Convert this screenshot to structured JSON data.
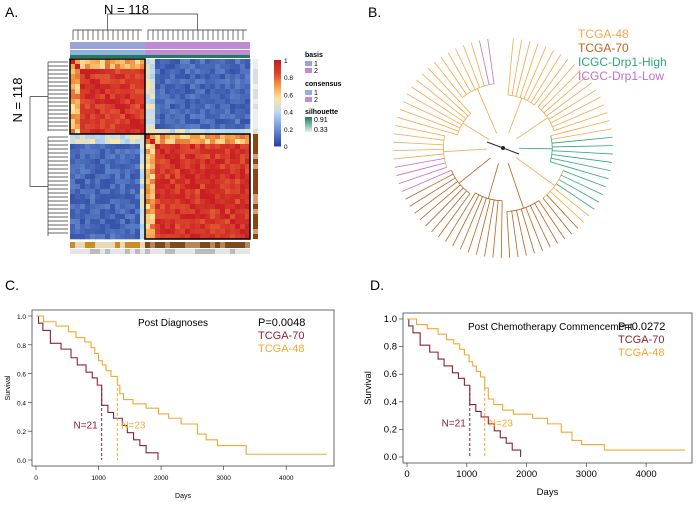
{
  "panels": {
    "a": {
      "label": "A.",
      "top_n": "N = 118",
      "side_n": "N = 118",
      "legend": {
        "basis_title": "basis",
        "consensus_title": "consensus",
        "silhouette_title": "silhouette",
        "class_1": "1",
        "class_2": "2",
        "sil_max": "0.91",
        "sil_min": "0.33",
        "scale_ticks": [
          "1",
          "0.8",
          "0.6",
          "0.4",
          "0.2",
          "0"
        ]
      },
      "colors": {
        "basis1": "#9aa3d6",
        "basis2": "#c08ad4",
        "cons1": "#8fb0e0",
        "cons2": "#c08ad4",
        "sil_dark": "#1e7a60",
        "sil_light": "#bfe6d6"
      }
    },
    "b": {
      "label": "B.",
      "legend": [
        {
          "name": "TCGA-48",
          "color": "#f2a94b"
        },
        {
          "name": "TCGA-70",
          "color": "#b3651f"
        },
        {
          "name": "ICGC-Drp1-High",
          "color": "#2ea77a"
        },
        {
          "name": "ICGC-Drp1-Low",
          "color": "#c36fc8"
        }
      ]
    },
    "c": {
      "label": "C."
    },
    "d": {
      "label": "D."
    }
  },
  "chart_data": [
    {
      "id": "heatmap",
      "type": "heatmap",
      "title": "",
      "clusters": 2,
      "n_samples": 118,
      "color_scale": {
        "min": 0,
        "max": 1,
        "ticks": [
          0,
          0.2,
          0.4,
          0.6,
          0.8,
          1
        ]
      }
    },
    {
      "id": "km-c",
      "type": "line",
      "title": "Post Diagnoses",
      "pvalue": "P=0.0048",
      "xlabel": "Days",
      "ylabel": "Survival",
      "xlim": [
        0,
        4700
      ],
      "ylim": [
        0,
        1
      ],
      "xticks": [
        0,
        1000,
        2000,
        3000,
        4000
      ],
      "yticks": [
        0.0,
        0.2,
        0.4,
        0.6,
        0.8,
        1.0
      ],
      "ytick_labels": [
        "0.0",
        "0.2",
        "0.4",
        "0.6",
        "0.8",
        "1.0"
      ],
      "series": [
        {
          "name": "TCGA-70",
          "color": "#8b2232",
          "median": 1050,
          "n_label": "N=21",
          "steps": [
            [
              0,
              1.0
            ],
            [
              40,
              0.95
            ],
            [
              110,
              0.9
            ],
            [
              230,
              0.81
            ],
            [
              400,
              0.77
            ],
            [
              560,
              0.71
            ],
            [
              660,
              0.66
            ],
            [
              800,
              0.61
            ],
            [
              900,
              0.57
            ],
            [
              980,
              0.52
            ],
            [
              1050,
              0.38
            ],
            [
              1150,
              0.33
            ],
            [
              1240,
              0.29
            ],
            [
              1380,
              0.24
            ],
            [
              1460,
              0.19
            ],
            [
              1560,
              0.14
            ],
            [
              1660,
              0.1
            ],
            [
              1760,
              0.05
            ],
            [
              1950,
              0.0
            ]
          ]
        },
        {
          "name": "TCGA-48",
          "color": "#f2a832",
          "median": 1300,
          "n_label": "N=23",
          "steps": [
            [
              0,
              1.0
            ],
            [
              120,
              0.96
            ],
            [
              320,
              0.93
            ],
            [
              520,
              0.89
            ],
            [
              640,
              0.85
            ],
            [
              780,
              0.82
            ],
            [
              880,
              0.78
            ],
            [
              940,
              0.74
            ],
            [
              1000,
              0.69
            ],
            [
              1060,
              0.66
            ],
            [
              1120,
              0.62
            ],
            [
              1200,
              0.58
            ],
            [
              1300,
              0.52
            ],
            [
              1340,
              0.46
            ],
            [
              1400,
              0.42
            ],
            [
              1550,
              0.39
            ],
            [
              1760,
              0.36
            ],
            [
              1960,
              0.32
            ],
            [
              2120,
              0.29
            ],
            [
              2320,
              0.25
            ],
            [
              2580,
              0.18
            ],
            [
              2720,
              0.14
            ],
            [
              2900,
              0.1
            ],
            [
              3360,
              0.04
            ],
            [
              4650,
              0.04
            ]
          ]
        }
      ]
    },
    {
      "id": "km-d",
      "type": "line",
      "title": "Post Chemotherapy Commencement",
      "pvalue": "P=0.0272",
      "xlabel": "Days",
      "ylabel": "Survival",
      "xlim": [
        0,
        4700
      ],
      "ylim": [
        0,
        1
      ],
      "xticks": [
        0,
        1000,
        2000,
        3000,
        4000
      ],
      "yticks": [
        0.0,
        0.2,
        0.4,
        0.6,
        0.8,
        1.0
      ],
      "ytick_labels": [
        "0.0",
        "0.2",
        "0.4",
        "0.6",
        "0.8",
        "1.0"
      ],
      "series": [
        {
          "name": "TCGA-70",
          "color": "#8b2232",
          "median": 1050,
          "n_label": "N=21",
          "steps": [
            [
              0,
              1.0
            ],
            [
              30,
              0.95
            ],
            [
              100,
              0.9
            ],
            [
              220,
              0.81
            ],
            [
              380,
              0.76
            ],
            [
              520,
              0.71
            ],
            [
              620,
              0.66
            ],
            [
              760,
              0.61
            ],
            [
              860,
              0.57
            ],
            [
              960,
              0.52
            ],
            [
              1050,
              0.38
            ],
            [
              1150,
              0.33
            ],
            [
              1240,
              0.29
            ],
            [
              1360,
              0.24
            ],
            [
              1460,
              0.19
            ],
            [
              1560,
              0.14
            ],
            [
              1660,
              0.1
            ],
            [
              1760,
              0.05
            ],
            [
              1900,
              0.0
            ]
          ]
        },
        {
          "name": "TCGA-48",
          "color": "#f2a832",
          "median": 1300,
          "n_label": "N=23",
          "steps": [
            [
              0,
              1.0
            ],
            [
              160,
              0.96
            ],
            [
              340,
              0.93
            ],
            [
              520,
              0.89
            ],
            [
              660,
              0.85
            ],
            [
              780,
              0.82
            ],
            [
              880,
              0.78
            ],
            [
              960,
              0.74
            ],
            [
              1040,
              0.69
            ],
            [
              1100,
              0.66
            ],
            [
              1160,
              0.62
            ],
            [
              1230,
              0.58
            ],
            [
              1300,
              0.5
            ],
            [
              1360,
              0.42
            ],
            [
              1450,
              0.38
            ],
            [
              1600,
              0.34
            ],
            [
              1780,
              0.31
            ],
            [
              1960,
              0.31
            ],
            [
              2100,
              0.28
            ],
            [
              2350,
              0.24
            ],
            [
              2580,
              0.18
            ],
            [
              2760,
              0.12
            ],
            [
              2920,
              0.09
            ],
            [
              3300,
              0.05
            ],
            [
              4650,
              0.05
            ]
          ]
        }
      ]
    }
  ]
}
